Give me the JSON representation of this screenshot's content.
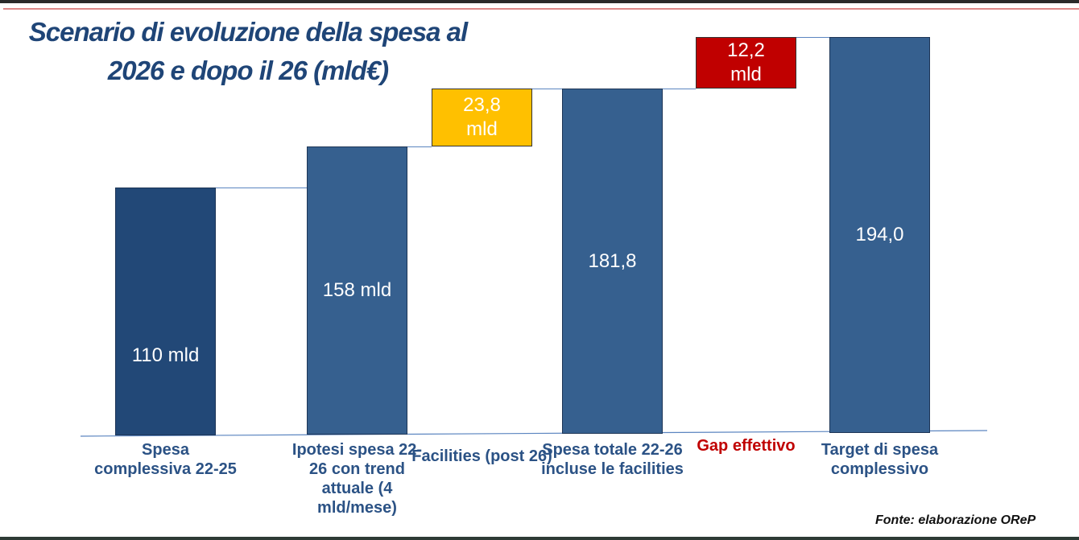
{
  "chart_data": {
    "type": "bar",
    "subtype": "waterfall",
    "title": "Scenario di evoluzione della spesa al 2026  e dopo il 26 (mld€)",
    "categories": [
      "Spesa complessiva 22-25",
      "Ipotesi spesa 22-26 con trend attuale (4 mld/mese)",
      "Facilities (post 26)",
      "Spesa totale 22-26 incluse le facilities",
      "Gap effettivo",
      "Target  di spesa complessivo"
    ],
    "values": [
      110,
      158,
      23.8,
      181.8,
      12.2,
      194.0
    ],
    "kinds": [
      "total",
      "total",
      "increment",
      "total",
      "increment",
      "total"
    ],
    "data_labels": [
      "110 mld",
      "158 mld",
      "23,8 mld",
      "181,8",
      "12,2 mld",
      "194,0"
    ],
    "colors": [
      "#224877",
      "#36608f",
      "#ffc000",
      "#36608f",
      "#c00000",
      "#36608f"
    ],
    "label_colors": [
      "#2b5285",
      "#2b5285",
      "#2b5285",
      "#2b5285",
      "#c00000",
      "#2b5285"
    ],
    "bar_text_colors": [
      "#ffffff",
      "#ffffff",
      "#ffffff",
      "#ffffff",
      "#ffffff",
      "#ffffff"
    ],
    "grid": false,
    "legend": "none",
    "source": "Fonte: elaborazione OReP"
  }
}
